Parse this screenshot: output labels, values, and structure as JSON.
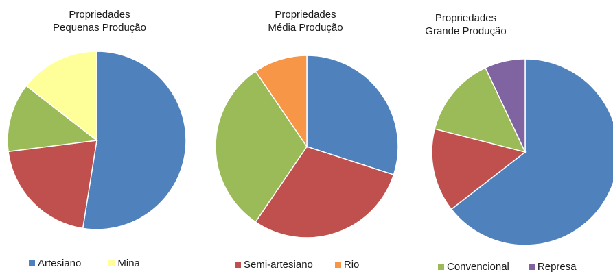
{
  "chart_data": [
    {
      "type": "pie",
      "title_line1": "Propriedades",
      "title_line2": "Pequenas Produção",
      "slices": [
        {
          "name": "Artesiano",
          "value": 52.5,
          "color": "#4F81BD"
        },
        {
          "name": "Semi-artesiano",
          "value": 20.5,
          "color": "#C0504D"
        },
        {
          "name": "Convencional",
          "value": 12.5,
          "color": "#9BBB59"
        },
        {
          "name": "Mina",
          "value": 14.5,
          "color": "#FFFF99"
        }
      ]
    },
    {
      "type": "pie",
      "title_line1": "Propriedades",
      "title_line2": "Média Produção",
      "slices": [
        {
          "name": "Artesiano",
          "value": 30.0,
          "color": "#4F81BD"
        },
        {
          "name": "Semi-artesiano",
          "value": 29.5,
          "color": "#C0504D"
        },
        {
          "name": "Convencional",
          "value": 31.0,
          "color": "#9BBB59"
        },
        {
          "name": "Rio",
          "value": 9.5,
          "color": "#F79646"
        }
      ]
    },
    {
      "type": "pie",
      "title_line1": "Propriedades",
      "title_line2": "Grande Produção",
      "slices": [
        {
          "name": "Artesiano",
          "value": 64.5,
          "color": "#4F81BD"
        },
        {
          "name": "Semi-artesiano",
          "value": 14.5,
          "color": "#C0504D"
        },
        {
          "name": "Convencional",
          "value": 14.0,
          "color": "#9BBB59"
        },
        {
          "name": "Represa",
          "value": 7.0,
          "color": "#8064A2"
        }
      ]
    }
  ],
  "legends": [
    [
      {
        "name": "Artesiano",
        "color": "#4F81BD"
      },
      {
        "name": "Mina",
        "color": "#FFFF99"
      }
    ],
    [
      {
        "name": "Semi-artesiano",
        "color": "#C0504D"
      },
      {
        "name": "Rio",
        "color": "#F79646"
      }
    ],
    [
      {
        "name": "Convencional",
        "color": "#9BBB59"
      },
      {
        "name": "Represa",
        "color": "#8064A2"
      }
    ]
  ]
}
